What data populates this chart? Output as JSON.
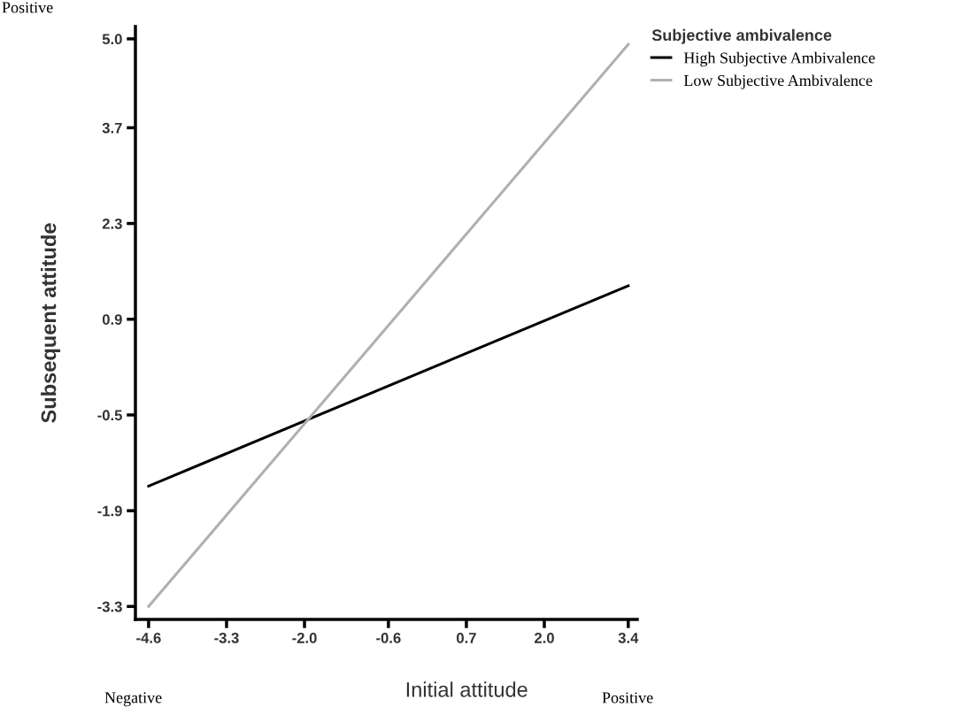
{
  "chart_data": {
    "type": "line",
    "xlabel": "Initial attitude",
    "ylabel": "Subsequent attitude",
    "legend_title": "Subjective ambivalence",
    "x": [
      -4.6,
      3.4
    ],
    "series": [
      {
        "name": "High Subjective Ambivalence",
        "color": "#000000",
        "values": [
          -1.54,
          1.39
        ]
      },
      {
        "name": "Low Subjective Ambivalence",
        "color": "#b0b0b0",
        "values": [
          -3.3,
          4.92
        ]
      }
    ],
    "xlim": [
      -4.82,
      3.55
    ],
    "ylim": [
      -3.49,
      5.18
    ],
    "xticks": [
      -4.6,
      -3.3,
      {
        "value": -2,
        "label": "-2.0"
      },
      -0.6,
      0.7,
      {
        "value": 2,
        "label": "2.0"
      },
      3.4
    ],
    "yticks": [
      -3.3,
      -1.9,
      -0.5,
      0.9,
      2.3,
      3.7,
      {
        "value": 5,
        "label": "5.0"
      }
    ],
    "grid": false,
    "legend": "top right",
    "marker": "none",
    "line_style": "solid",
    "annotations": [
      "Positive",
      "Negative",
      "Positive"
    ]
  }
}
